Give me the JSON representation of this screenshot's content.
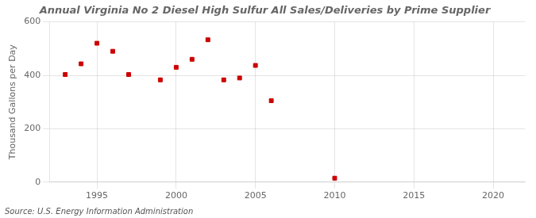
{
  "chart_data": {
    "type": "scatter",
    "title": "Annual Virginia No 2 Diesel High Sulfur All Sales/Deliveries by Prime Supplier",
    "y_label": "Thousand Gallons per Day",
    "annotations": [
      "Source: U.S. Energy Information Administration"
    ],
    "x": [
      1993,
      1994,
      1995,
      1996,
      1997,
      1999,
      2000,
      2001,
      2002,
      2003,
      2004,
      2005,
      2006,
      2010
    ],
    "values": [
      403,
      443,
      520,
      490,
      403,
      383,
      430,
      460,
      533,
      383,
      390,
      437,
      305,
      15
    ],
    "color": "#cc0000",
    "marker": "square",
    "xlim": [
      1992,
      2022
    ],
    "xticks": [
      1995,
      2000,
      2005,
      2010,
      2015,
      2020
    ],
    "ylim": [
      0,
      600
    ],
    "yticks": [
      0,
      200,
      400,
      600
    ],
    "grid": true
  }
}
